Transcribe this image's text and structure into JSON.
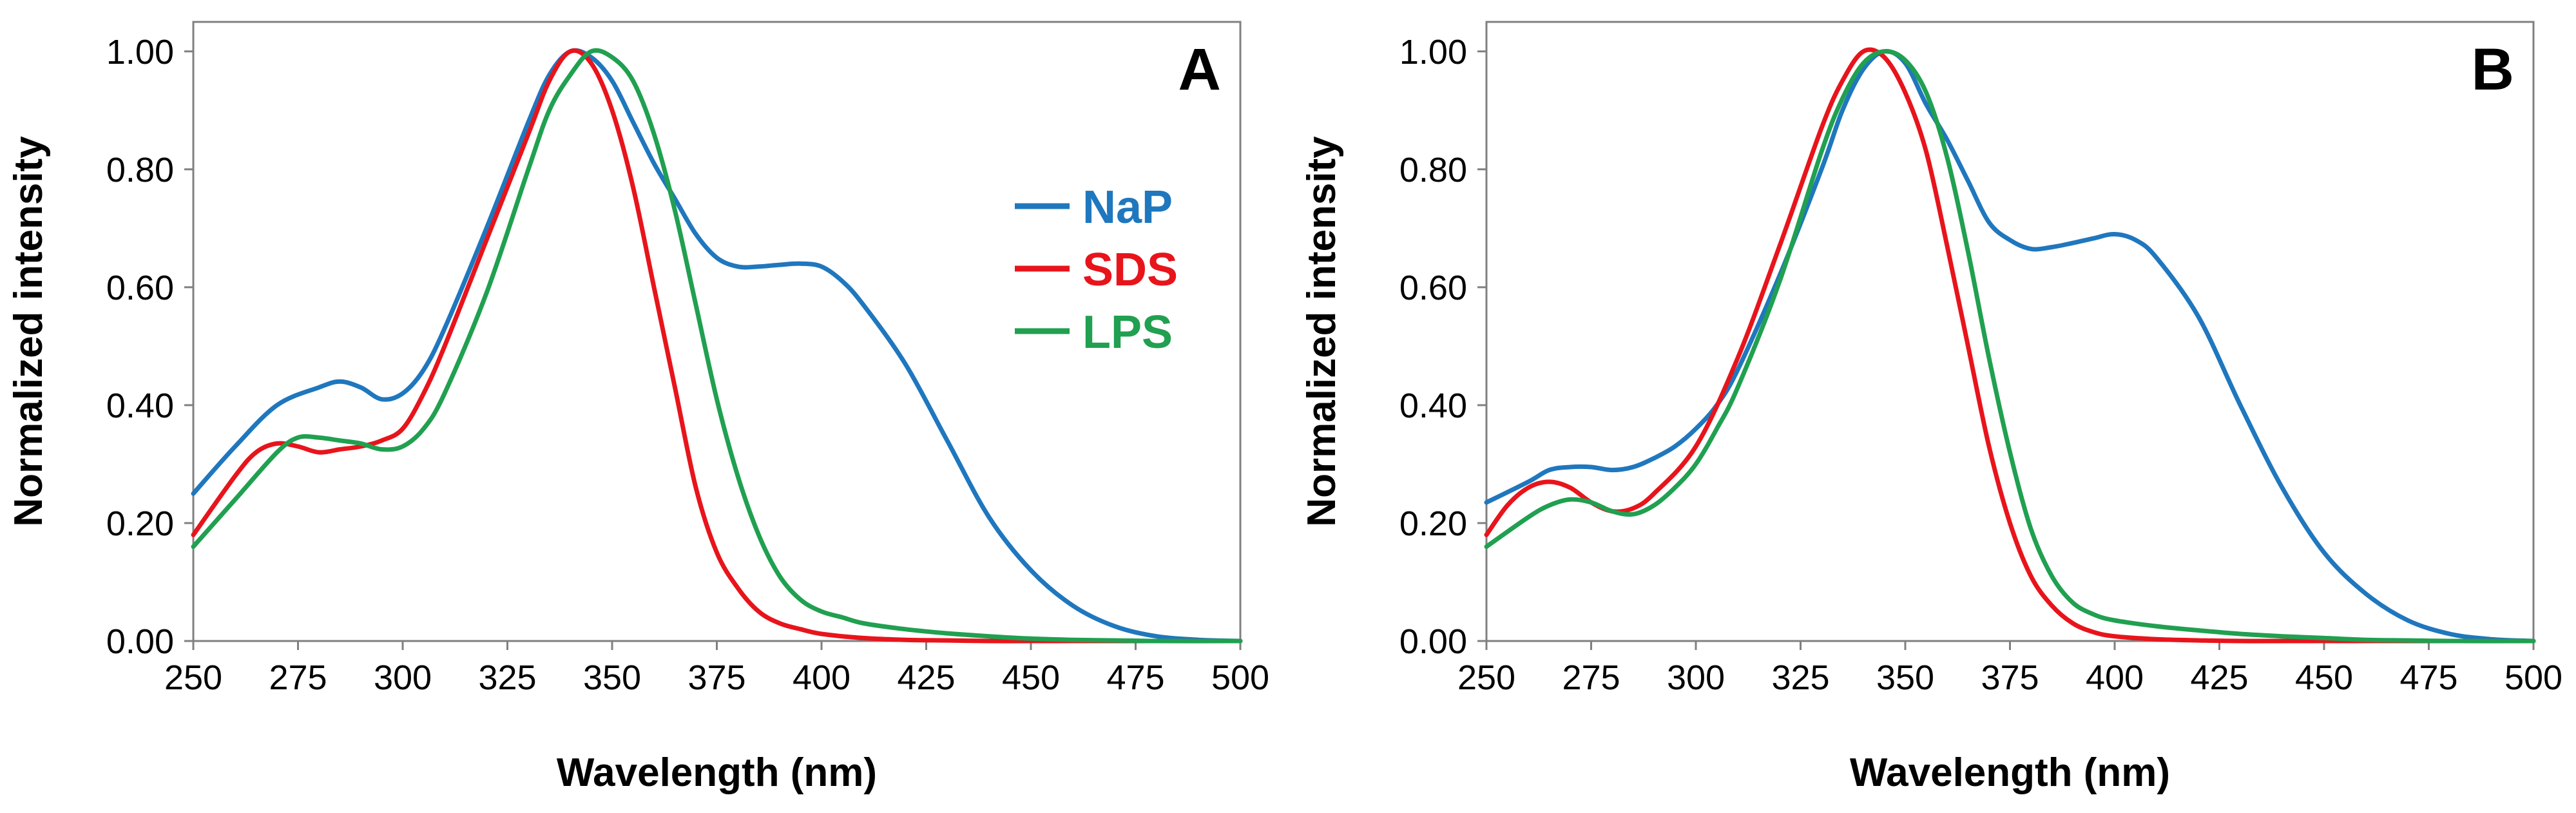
{
  "chart_data": [
    {
      "type": "line",
      "panel_label": "A",
      "xlabel": "Wavelength (nm)",
      "ylabel": "Normalized intensity",
      "xlim": [
        250,
        500
      ],
      "ylim": [
        0.0,
        1.05
      ],
      "x_ticks": [
        "250",
        "275",
        "300",
        "325",
        "350",
        "375",
        "400",
        "425",
        "450",
        "475",
        "500"
      ],
      "y_ticks": [
        "0.00",
        "0.20",
        "0.40",
        "0.60",
        "0.80",
        "1.00"
      ],
      "legend": {
        "position": "top-right",
        "entries": [
          "NaP",
          "SDS",
          "LPS"
        ]
      },
      "series": [
        {
          "name": "NaP",
          "color": "#1F77BE",
          "x": [
            250,
            260,
            270,
            280,
            285,
            290,
            295,
            300,
            305,
            310,
            320,
            330,
            335,
            340,
            345,
            350,
            355,
            360,
            365,
            370,
            375,
            380,
            385,
            390,
            395,
            400,
            405,
            410,
            420,
            430,
            440,
            450,
            460,
            470,
            480,
            490,
            500
          ],
          "y": [
            0.25,
            0.33,
            0.4,
            0.43,
            0.44,
            0.43,
            0.41,
            0.42,
            0.46,
            0.53,
            0.7,
            0.88,
            0.96,
            1.0,
            0.99,
            0.95,
            0.88,
            0.81,
            0.75,
            0.69,
            0.65,
            0.635,
            0.635,
            0.638,
            0.64,
            0.635,
            0.61,
            0.57,
            0.47,
            0.34,
            0.21,
            0.12,
            0.06,
            0.025,
            0.008,
            0.002,
            0.0
          ]
        },
        {
          "name": "SDS",
          "color": "#E8141B",
          "x": [
            250,
            260,
            265,
            270,
            275,
            280,
            285,
            290,
            295,
            300,
            305,
            310,
            320,
            330,
            335,
            340,
            345,
            350,
            355,
            360,
            365,
            370,
            375,
            380,
            385,
            390,
            395,
            400,
            410,
            420,
            430,
            440,
            450,
            460,
            500
          ],
          "y": [
            0.18,
            0.28,
            0.32,
            0.335,
            0.33,
            0.32,
            0.325,
            0.33,
            0.34,
            0.36,
            0.42,
            0.5,
            0.68,
            0.86,
            0.95,
            1.0,
            0.98,
            0.9,
            0.77,
            0.6,
            0.43,
            0.26,
            0.15,
            0.09,
            0.05,
            0.03,
            0.02,
            0.012,
            0.005,
            0.002,
            0.001,
            0.0,
            0.0,
            0.0,
            0.0
          ]
        },
        {
          "name": "LPS",
          "color": "#20A050",
          "x": [
            250,
            260,
            270,
            275,
            280,
            285,
            290,
            295,
            300,
            305,
            310,
            320,
            330,
            335,
            340,
            345,
            350,
            355,
            360,
            365,
            370,
            375,
            380,
            385,
            390,
            395,
            400,
            405,
            410,
            420,
            430,
            440,
            450,
            460,
            470,
            480,
            500
          ],
          "y": [
            0.16,
            0.24,
            0.32,
            0.345,
            0.345,
            0.34,
            0.335,
            0.325,
            0.33,
            0.36,
            0.42,
            0.59,
            0.8,
            0.9,
            0.96,
            1.0,
            0.99,
            0.95,
            0.86,
            0.73,
            0.57,
            0.41,
            0.28,
            0.18,
            0.11,
            0.07,
            0.05,
            0.04,
            0.03,
            0.02,
            0.013,
            0.008,
            0.004,
            0.002,
            0.001,
            0.0,
            0.0
          ]
        }
      ]
    },
    {
      "type": "line",
      "panel_label": "B",
      "xlabel": "Wavelength (nm)",
      "ylabel": "Normalized intensity",
      "xlim": [
        250,
        500
      ],
      "ylim": [
        0.0,
        1.05
      ],
      "x_ticks": [
        "250",
        "275",
        "300",
        "325",
        "350",
        "375",
        "400",
        "425",
        "450",
        "475",
        "500"
      ],
      "y_ticks": [
        "0.00",
        "0.20",
        "0.40",
        "0.60",
        "0.80",
        "1.00"
      ],
      "series": [
        {
          "name": "NaP",
          "color": "#1F77BE",
          "x": [
            250,
            260,
            265,
            270,
            275,
            280,
            285,
            290,
            295,
            300,
            305,
            310,
            320,
            330,
            335,
            340,
            345,
            350,
            355,
            360,
            365,
            370,
            375,
            380,
            385,
            390,
            395,
            400,
            405,
            410,
            420,
            430,
            440,
            450,
            460,
            470,
            480,
            490,
            500
          ],
          "y": [
            0.235,
            0.27,
            0.29,
            0.295,
            0.295,
            0.29,
            0.295,
            0.31,
            0.33,
            0.36,
            0.4,
            0.46,
            0.62,
            0.8,
            0.9,
            0.97,
            1.0,
            0.98,
            0.91,
            0.85,
            0.78,
            0.71,
            0.68,
            0.665,
            0.668,
            0.675,
            0.683,
            0.69,
            0.68,
            0.65,
            0.55,
            0.4,
            0.26,
            0.15,
            0.08,
            0.035,
            0.012,
            0.003,
            0.0
          ]
        },
        {
          "name": "SDS",
          "color": "#E8141B",
          "x": [
            250,
            255,
            260,
            265,
            270,
            275,
            280,
            285,
            290,
            300,
            310,
            320,
            330,
            335,
            340,
            345,
            350,
            355,
            360,
            365,
            370,
            375,
            380,
            385,
            390,
            395,
            400,
            410,
            420,
            430,
            450,
            500
          ],
          "y": [
            0.18,
            0.23,
            0.26,
            0.27,
            0.26,
            0.235,
            0.22,
            0.225,
            0.25,
            0.33,
            0.48,
            0.67,
            0.87,
            0.95,
            1.0,
            0.99,
            0.93,
            0.83,
            0.67,
            0.5,
            0.33,
            0.2,
            0.11,
            0.06,
            0.03,
            0.015,
            0.008,
            0.003,
            0.001,
            0.0,
            0.0,
            0.0
          ]
        },
        {
          "name": "LPS",
          "color": "#20A050",
          "x": [
            250,
            260,
            265,
            270,
            275,
            280,
            285,
            290,
            295,
            300,
            305,
            310,
            320,
            330,
            335,
            340,
            345,
            350,
            355,
            360,
            365,
            370,
            375,
            380,
            385,
            390,
            395,
            400,
            410,
            420,
            430,
            440,
            450,
            460,
            470,
            480,
            500
          ],
          "y": [
            0.16,
            0.21,
            0.23,
            0.24,
            0.235,
            0.22,
            0.215,
            0.23,
            0.26,
            0.3,
            0.36,
            0.43,
            0.61,
            0.83,
            0.92,
            0.98,
            1.0,
            0.985,
            0.93,
            0.82,
            0.66,
            0.48,
            0.32,
            0.19,
            0.11,
            0.065,
            0.045,
            0.035,
            0.025,
            0.018,
            0.012,
            0.008,
            0.005,
            0.002,
            0.001,
            0.0,
            0.0
          ]
        }
      ]
    }
  ]
}
